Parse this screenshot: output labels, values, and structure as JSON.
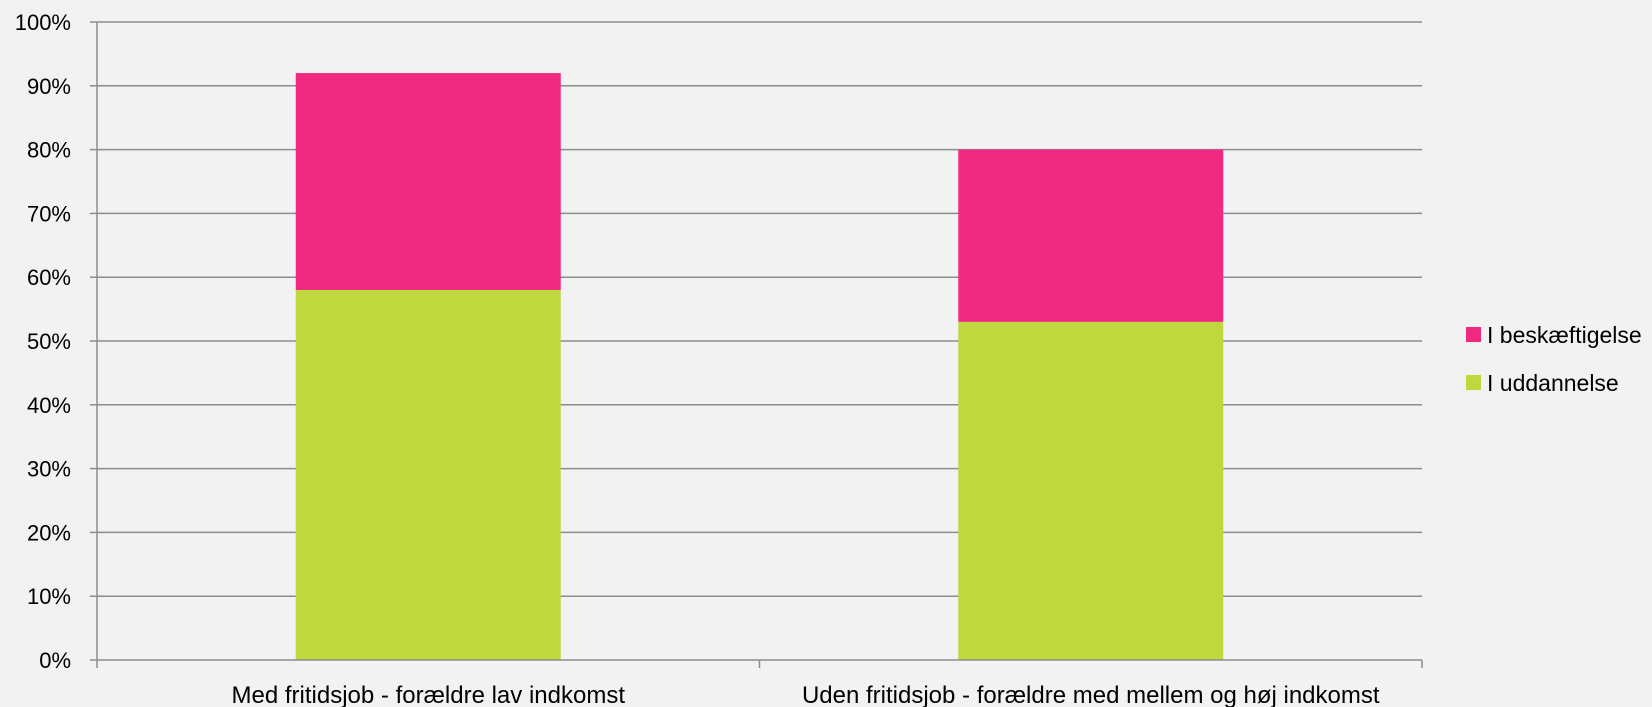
{
  "chart_data": {
    "type": "bar",
    "stacked": true,
    "categories": [
      "Med fritidsjob - forældre lav indkomst",
      "Uden fritidsjob - forældre med mellem og høj indkomst"
    ],
    "series": [
      {
        "name": "I uddannelse",
        "color": "#bfd83e",
        "values": [
          58,
          53
        ]
      },
      {
        "name": "I beskæftigelse",
        "color": "#f02a80",
        "values": [
          34,
          27
        ]
      }
    ],
    "y_ticks": [
      "0%",
      "10%",
      "20%",
      "30%",
      "40%",
      "50%",
      "60%",
      "70%",
      "80%",
      "90%",
      "100%"
    ],
    "ylim": [
      0,
      100
    ],
    "grid": true,
    "legend_position": "right"
  }
}
